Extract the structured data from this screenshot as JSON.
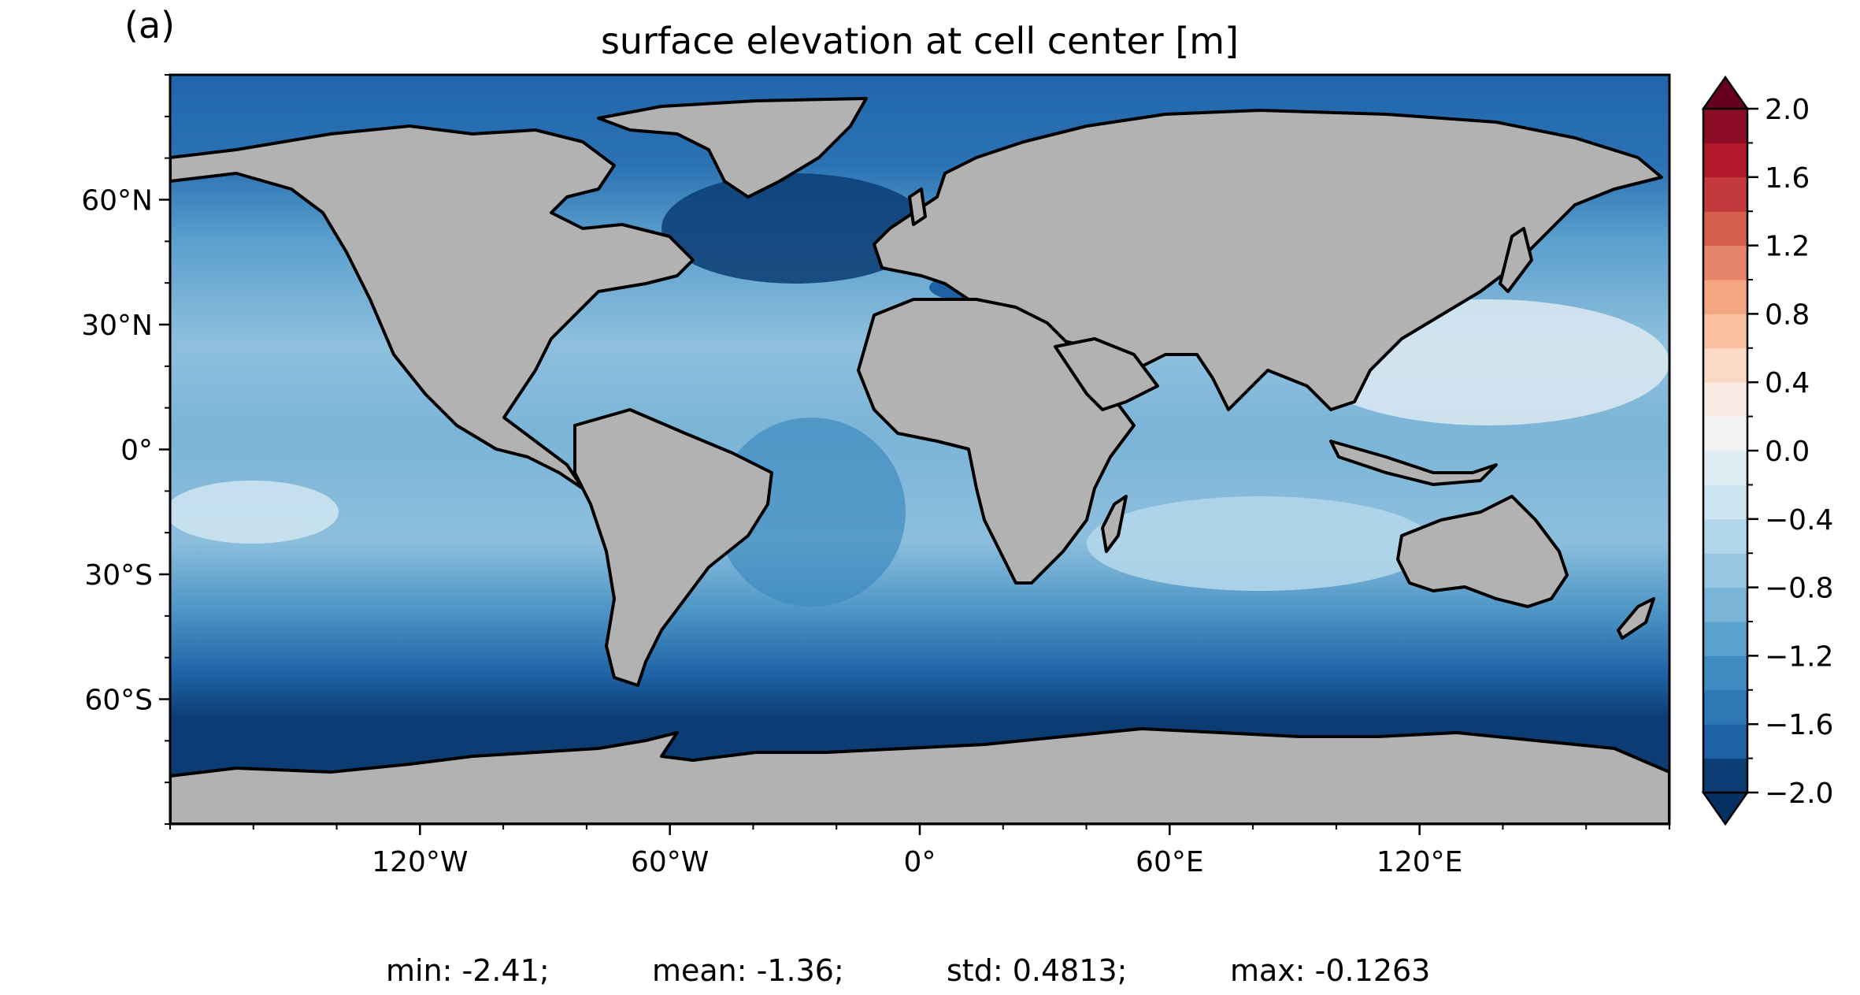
{
  "figure": {
    "panel_label": "(a)",
    "title": "surface elevation at cell center [m]",
    "projection": "PlateCarree",
    "land_color": "#b2b2b2",
    "missing_color": "#ffffff",
    "coastline_color": "#000000"
  },
  "axes": {
    "x_ticks": [
      {
        "value": -120,
        "label": "120°W"
      },
      {
        "value": -60,
        "label": "60°W"
      },
      {
        "value": 0,
        "label": "0°"
      },
      {
        "value": 60,
        "label": "60°E"
      },
      {
        "value": 120,
        "label": "120°E"
      }
    ],
    "y_ticks": [
      {
        "value": 60,
        "label": "60°N"
      },
      {
        "value": 30,
        "label": "30°N"
      },
      {
        "value": 0,
        "label": "0°"
      },
      {
        "value": -30,
        "label": "30°S"
      },
      {
        "value": -60,
        "label": "60°S"
      }
    ],
    "lon_range": [
      -180,
      180
    ],
    "lat_range": [
      -90,
      90
    ]
  },
  "colorbar": {
    "min": -2.0,
    "max": 2.0,
    "step": 0.2,
    "extend": "both",
    "ticks": [
      {
        "value": 2.0,
        "label": "2.0"
      },
      {
        "value": 1.6,
        "label": "1.6"
      },
      {
        "value": 1.2,
        "label": "1.2"
      },
      {
        "value": 0.8,
        "label": "0.8"
      },
      {
        "value": 0.4,
        "label": "0.4"
      },
      {
        "value": 0.0,
        "label": "0.0"
      },
      {
        "value": -0.4,
        "label": "−0.4"
      },
      {
        "value": -0.8,
        "label": "−0.8"
      },
      {
        "value": -1.2,
        "label": "−1.2"
      },
      {
        "value": -1.6,
        "label": "−1.6"
      },
      {
        "value": -2.0,
        "label": "−2.0"
      }
    ],
    "under_color": "#053061",
    "over_color": "#67001f",
    "level_colors": [
      "#0b3c73",
      "#1e61a5",
      "#2e78b6",
      "#3f8bc1",
      "#5aa1cc",
      "#7ab5d8",
      "#97c7e2",
      "#b2d6ea",
      "#cce3f0",
      "#e0ecf3",
      "#f1f3f4",
      "#f9ece4",
      "#fcd9c5",
      "#f9bfa0",
      "#f4a582",
      "#e6846a",
      "#d6604d",
      "#c4393c",
      "#b2182b",
      "#8e0d26"
    ]
  },
  "stats": {
    "min": "min: -2.41;",
    "mean": "mean: -1.36;",
    "std": "std: 0.4813;",
    "max": "max: -0.1263"
  }
}
